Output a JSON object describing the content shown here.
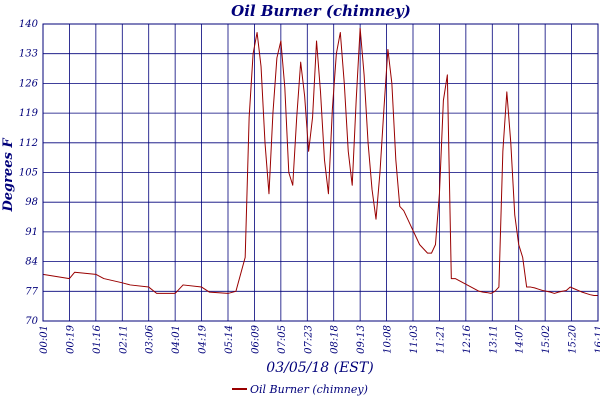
{
  "chart_data": {
    "type": "line",
    "title": "Oil Burner (chimney)",
    "xlabel": "03/05/18 (EST)",
    "ylabel": "Degrees F",
    "ylim": [
      70,
      140
    ],
    "yticks": [
      70,
      77,
      84,
      91,
      98,
      105,
      112,
      119,
      126,
      133,
      140
    ],
    "xlim": [
      "00:01",
      "16:11"
    ],
    "xticks": [
      "00:01",
      "00:19",
      "01:16",
      "02:11",
      "03:06",
      "04:01",
      "04:19",
      "05:14",
      "06:09",
      "07:05",
      "07:23",
      "08:18",
      "09:13",
      "10:08",
      "11:03",
      "11:21",
      "12:16",
      "13:11",
      "14:07",
      "15:02",
      "15:20",
      "16:11"
    ],
    "grid": true,
    "legend": "bottom",
    "series": [
      {
        "name": "Oil Burner (chimney)",
        "color": "#990000",
        "x": [
          0,
          0.5,
          1,
          1.2,
          2,
          2.3,
          3,
          3.3,
          4,
          4.3,
          5,
          5.3,
          6,
          6.3,
          7,
          7.3,
          7.65,
          7.8,
          7.95,
          8.1,
          8.25,
          8.4,
          8.55,
          8.7,
          8.85,
          9.0,
          9.15,
          9.3,
          9.45,
          9.6,
          9.75,
          9.9,
          10.05,
          10.2,
          10.35,
          10.5,
          10.65,
          10.8,
          10.95,
          11.1,
          11.25,
          11.4,
          11.55,
          11.7,
          11.85,
          12.0,
          12.15,
          12.3,
          12.45,
          12.6,
          12.75,
          12.9,
          13.05,
          13.2,
          13.35,
          13.5,
          13.65,
          13.8,
          13.95,
          14.1,
          14.25,
          14.4,
          14.55,
          14.7,
          14.85,
          15.0,
          15.15,
          15.3,
          15.45,
          15.6,
          15.75,
          15.9,
          16.05,
          16.2,
          16.35,
          16.5,
          16.65,
          16.8,
          16.95,
          17.1,
          17.25,
          17.4,
          17.55,
          17.7,
          17.85,
          18,
          18.15,
          18.3,
          18.45,
          18.6,
          18.75,
          18.9,
          19.05,
          19.2,
          19.35,
          19.5,
          19.65,
          19.8,
          19.95,
          20.1,
          20.25,
          20.4,
          20.55,
          20.7,
          20.85,
          21
        ],
        "values": [
          81,
          80.5,
          80,
          81.5,
          81,
          80,
          79,
          78.5,
          78,
          76.5,
          76.5,
          78.5,
          78,
          76.8,
          76.5,
          77,
          85,
          118,
          133,
          138,
          130,
          112,
          100,
          119,
          132,
          136,
          125,
          105,
          102,
          118,
          131,
          123,
          110,
          118,
          136,
          124,
          108,
          100,
          120,
          133,
          138,
          126,
          110,
          102,
          122,
          139,
          128,
          112,
          101,
          94,
          105,
          120,
          134,
          126,
          108,
          97,
          96,
          94,
          92,
          90,
          88,
          87,
          86,
          86,
          88,
          100,
          122,
          128,
          80,
          80,
          79.5,
          79,
          78.5,
          78,
          77.5,
          77,
          76.8,
          76.7,
          76.5,
          77,
          78,
          110,
          124,
          112,
          95,
          88,
          85,
          78,
          78,
          77.8,
          77.5,
          77.2,
          77,
          76.8,
          76.5,
          76.8,
          77,
          77.2,
          78,
          77.6,
          77.2,
          76.8,
          76.5,
          76.2,
          76,
          76
        ]
      }
    ]
  }
}
